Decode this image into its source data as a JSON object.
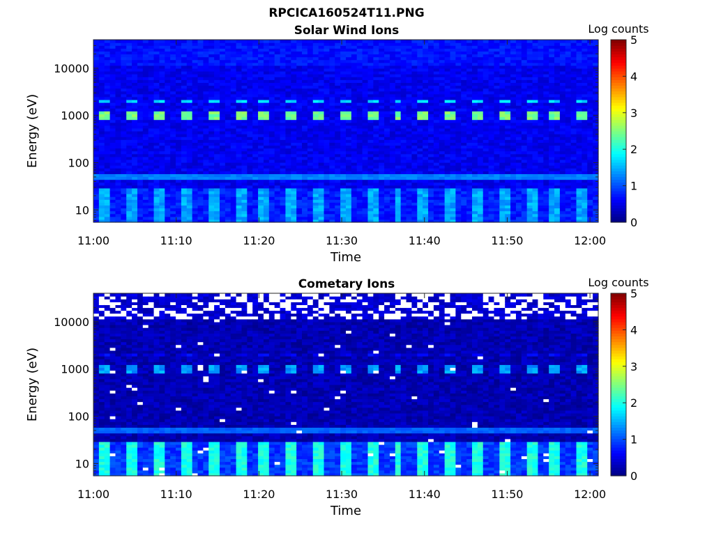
{
  "figure_title": "RPCICA160524T11.PNG",
  "chart_data": [
    {
      "type": "heatmap",
      "title": "Solar Wind Ions",
      "xlabel": "Time",
      "ylabel": "Energy (eV)",
      "x_ticks": [
        "11:00",
        "11:10",
        "11:20",
        "11:30",
        "11:40",
        "11:50",
        "12:00"
      ],
      "x_range": [
        "11:00",
        "12:01"
      ],
      "y_scale": "log",
      "y_ticks": [
        "10",
        "100",
        "1000",
        "10000"
      ],
      "y_range": [
        5.5,
        40000
      ],
      "colorbar_label": "Log counts",
      "colorbar_ticks": [
        "0",
        "1",
        "2",
        "3",
        "4",
        "5"
      ],
      "color_range": [
        0,
        5
      ],
      "colormap": "jet",
      "saturated_color": "#ffffff",
      "features": {
        "background_level": 0.55,
        "band_energy_ev": 50,
        "band_level": 1.25,
        "low_energy_max_ev": 28,
        "low_energy_level": 0.75,
        "low_energy_pulse_level": 1.45,
        "pulse_period_min": 3.2,
        "peak_energy_ev": 1000,
        "peak_level": 2.45,
        "second_peak_energy_ev": 2000,
        "second_peak_level": 1.7
      }
    },
    {
      "type": "heatmap",
      "title": "Cometary Ions",
      "xlabel": "Time",
      "ylabel": "Energy (eV)",
      "x_ticks": [
        "11:00",
        "11:10",
        "11:20",
        "11:30",
        "11:40",
        "11:50",
        "12:00"
      ],
      "x_range": [
        "11:00",
        "12:01"
      ],
      "y_scale": "log",
      "y_ticks": [
        "10",
        "100",
        "1000",
        "10000"
      ],
      "y_range": [
        5.5,
        40000
      ],
      "colorbar_label": "Log counts",
      "colorbar_ticks": [
        "0",
        "1",
        "2",
        "3",
        "4",
        "5"
      ],
      "color_range": [
        0,
        5
      ],
      "colormap": "jet",
      "saturated_color": "#ffffff",
      "features": {
        "background_level": 0.25,
        "band_energy_ev": 50,
        "band_level": 1.1,
        "low_energy_max_ev": 28,
        "low_energy_level": 0.9,
        "low_energy_pulse_level": 2.0,
        "pulse_period_min": 3.2,
        "peak_energy_ev": 1000,
        "peak_level": 1.4,
        "second_peak_energy_ev": 2000,
        "second_peak_level": 0.6,
        "empty_bins_above_ev": 12000
      }
    }
  ]
}
